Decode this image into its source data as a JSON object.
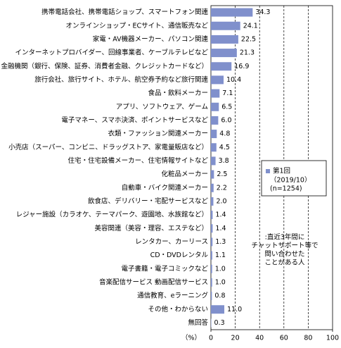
{
  "chart_data": {
    "type": "barh",
    "categories": [
      "携帯電話会社、携帯電話ショップ、スマートフォン関連",
      "オンラインショップ・ECサイト、通信販売など",
      "家電・AV機器メーカー、パソコン関連",
      "インターネットプロバイダー、回線事業者、ケーブルテレビなど",
      "金融機関（銀行、保険、証券、消費者金融、クレジットカードなど）",
      "旅行会社、旅行サイト、ホテル、航空券予約など旅行関連",
      "食品・飲料メーカー",
      "アプリ、ソフトウェア、ゲーム",
      "電子マネー、スマホ決済、ポイントサービスなど",
      "衣類・ファッション関連メーカー",
      "小売店（スーパー、コンビニ、ドラッグストア、家電量販店など）",
      "住宅・住宅設備メーカー、住宅情報サイトなど",
      "化粧品メーカー",
      "自動車・バイク関連メーカー",
      "飲食店、デリバリー・宅配サービスなど",
      "レジャー施設（カラオケ、テーマパーク、遊園地、水族館など）",
      "美容関連（美容・理容、エステなど）",
      "レンタカー、カーリース",
      "CD・DVDレンタル",
      "電子書籍・電子コミックなど",
      "音楽配信サービス 動画配信サービス",
      "通信教育、eラーニング",
      "その他・わからない",
      "無回答"
    ],
    "series": [
      {
        "name": "第1回",
        "color": "#8090cc",
        "values": [
          34.3,
          24.1,
          22.5,
          21.3,
          16.9,
          10.4,
          7.1,
          6.5,
          6.0,
          4.8,
          4.5,
          3.8,
          2.5,
          2.2,
          2.0,
          1.4,
          1.4,
          1.3,
          1.1,
          1.0,
          1.0,
          0.8,
          11.0,
          0.3
        ],
        "value_labels": [
          "34.3",
          "24.1",
          "22.5",
          "21.3",
          "16.9",
          "10.4",
          "7.1",
          "6.5",
          "6.0",
          "4.8",
          "4.5",
          "3.8",
          "2.5",
          "2.2",
          "2.0",
          "1.4",
          "1.4",
          "1.3",
          "1.1",
          "1.0",
          "1.0",
          "0.8",
          "11.0",
          "0.3"
        ]
      }
    ],
    "legend_note": [
      "（2019/10）",
      "(n=1254)"
    ],
    "annotation": [
      ":直近3年間に",
      "チャットサポート等で",
      "問い合わせた",
      "ことがある人"
    ],
    "x_label": "（%）",
    "xlim": [
      0,
      100
    ],
    "xticks": [
      0,
      20,
      40,
      60,
      80,
      100
    ],
    "grid": true
  }
}
